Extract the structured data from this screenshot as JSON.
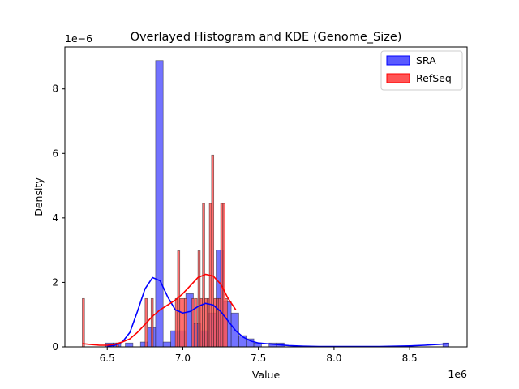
{
  "chart_data": {
    "type": "histogram",
    "title": "Overlayed Histogram and KDE (Genome_Size)",
    "xlabel": "Value",
    "ylabel": "Density",
    "x_scale_label": "1e6",
    "y_scale_label": "1e−6",
    "xlim": [
      6.22,
      8.88
    ],
    "ylim": [
      0,
      9.3
    ],
    "x_unit_note": "x in units of 1e6, y in units of 1e-6",
    "xticks": [
      {
        "value": 6.5,
        "label": "6.5"
      },
      {
        "value": 7.0,
        "label": "7.0"
      },
      {
        "value": 7.5,
        "label": "7.5"
      },
      {
        "value": 8.0,
        "label": "8.0"
      },
      {
        "value": 8.5,
        "label": "8.5"
      }
    ],
    "yticks": [
      {
        "value": 0,
        "label": "0"
      },
      {
        "value": 2,
        "label": "2"
      },
      {
        "value": 4,
        "label": "4"
      },
      {
        "value": 6,
        "label": "6"
      },
      {
        "value": 8,
        "label": "8"
      }
    ],
    "legend": {
      "position": "top-right"
    },
    "series": [
      {
        "name": "SRA",
        "color": "#0000ff",
        "fill": "#5a5aff",
        "bars": [
          {
            "x0": 6.49,
            "x1": 6.54,
            "y": 0.12
          },
          {
            "x0": 6.54,
            "x1": 6.59,
            "y": 0.12
          },
          {
            "x0": 6.62,
            "x1": 6.67,
            "y": 0.12
          },
          {
            "x0": 6.72,
            "x1": 6.77,
            "y": 0.15
          },
          {
            "x0": 6.77,
            "x1": 6.82,
            "y": 0.6
          },
          {
            "x0": 6.82,
            "x1": 6.87,
            "y": 8.88
          },
          {
            "x0": 6.87,
            "x1": 6.92,
            "y": 0.15
          },
          {
            "x0": 6.92,
            "x1": 6.97,
            "y": 0.5
          },
          {
            "x0": 6.97,
            "x1": 7.02,
            "y": 0.5
          },
          {
            "x0": 7.02,
            "x1": 7.07,
            "y": 1.65
          },
          {
            "x0": 7.07,
            "x1": 7.12,
            "y": 0.72
          },
          {
            "x0": 7.12,
            "x1": 7.17,
            "y": 0.5
          },
          {
            "x0": 7.17,
            "x1": 7.22,
            "y": 1.05
          },
          {
            "x0": 7.22,
            "x1": 7.27,
            "y": 3.0
          },
          {
            "x0": 7.27,
            "x1": 7.32,
            "y": 1.4
          },
          {
            "x0": 7.32,
            "x1": 7.37,
            "y": 1.05
          },
          {
            "x0": 7.37,
            "x1": 7.42,
            "y": 0.35
          },
          {
            "x0": 7.42,
            "x1": 7.47,
            "y": 0.25
          },
          {
            "x0": 7.47,
            "x1": 7.52,
            "y": 0.12
          },
          {
            "x0": 7.57,
            "x1": 7.62,
            "y": 0.12
          },
          {
            "x0": 7.62,
            "x1": 7.67,
            "y": 0.12
          },
          {
            "x0": 8.72,
            "x1": 8.76,
            "y": 0.12
          }
        ],
        "kde": {
          "x": [
            6.5,
            6.55,
            6.6,
            6.65,
            6.7,
            6.75,
            6.8,
            6.85,
            6.9,
            6.95,
            7.0,
            7.05,
            7.1,
            7.15,
            7.2,
            7.25,
            7.3,
            7.35,
            7.4,
            7.45,
            7.5,
            7.55,
            7.6,
            7.65,
            7.7,
            7.8,
            7.9,
            8.0,
            8.1,
            8.2,
            8.3,
            8.4,
            8.5,
            8.6,
            8.7,
            8.76
          ],
          "y": [
            0.02,
            0.05,
            0.15,
            0.45,
            1.1,
            1.8,
            2.15,
            2.05,
            1.55,
            1.15,
            1.05,
            1.1,
            1.25,
            1.35,
            1.3,
            1.1,
            0.8,
            0.5,
            0.3,
            0.18,
            0.12,
            0.1,
            0.08,
            0.06,
            0.04,
            0.02,
            0.01,
            0.01,
            0.01,
            0.01,
            0.01,
            0.02,
            0.03,
            0.05,
            0.08,
            0.1
          ]
        }
      },
      {
        "name": "RefSeq",
        "color": "#ff0000",
        "fill": "#ff5555",
        "bars": [
          {
            "x0": 6.335,
            "x1": 6.35,
            "y": 1.5
          },
          {
            "x0": 6.56,
            "x1": 6.575,
            "y": 0.12
          },
          {
            "x0": 6.75,
            "x1": 6.765,
            "y": 1.5
          },
          {
            "x0": 6.79,
            "x1": 6.805,
            "y": 1.5
          },
          {
            "x0": 6.95,
            "x1": 6.965,
            "y": 1.5
          },
          {
            "x0": 6.965,
            "x1": 6.98,
            "y": 2.98
          },
          {
            "x0": 6.98,
            "x1": 6.995,
            "y": 1.5
          },
          {
            "x0": 6.995,
            "x1": 7.01,
            "y": 1.5
          },
          {
            "x0": 7.01,
            "x1": 7.025,
            "y": 1.5
          },
          {
            "x0": 7.06,
            "x1": 7.075,
            "y": 1.5
          },
          {
            "x0": 7.08,
            "x1": 7.095,
            "y": 1.5
          },
          {
            "x0": 7.1,
            "x1": 7.115,
            "y": 2.98
          },
          {
            "x0": 7.115,
            "x1": 7.13,
            "y": 1.5
          },
          {
            "x0": 7.13,
            "x1": 7.145,
            "y": 4.45
          },
          {
            "x0": 7.145,
            "x1": 7.16,
            "y": 1.5
          },
          {
            "x0": 7.16,
            "x1": 7.175,
            "y": 1.5
          },
          {
            "x0": 7.175,
            "x1": 7.19,
            "y": 4.45
          },
          {
            "x0": 7.19,
            "x1": 7.205,
            "y": 5.95
          },
          {
            "x0": 7.205,
            "x1": 7.22,
            "y": 1.5
          },
          {
            "x0": 7.22,
            "x1": 7.235,
            "y": 1.5
          },
          {
            "x0": 7.235,
            "x1": 7.25,
            "y": 1.5
          },
          {
            "x0": 7.25,
            "x1": 7.265,
            "y": 4.45
          },
          {
            "x0": 7.265,
            "x1": 7.28,
            "y": 4.45
          },
          {
            "x0": 7.28,
            "x1": 7.295,
            "y": 1.5
          }
        ],
        "kde": {
          "x": [
            6.335,
            6.4,
            6.45,
            6.5,
            6.55,
            6.6,
            6.65,
            6.7,
            6.75,
            6.8,
            6.85,
            6.9,
            6.95,
            7.0,
            7.05,
            7.1,
            7.15,
            7.2,
            7.25,
            7.3,
            7.35
          ],
          "y": [
            0.1,
            0.07,
            0.05,
            0.05,
            0.08,
            0.15,
            0.25,
            0.45,
            0.7,
            0.95,
            1.15,
            1.3,
            1.45,
            1.65,
            1.9,
            2.15,
            2.25,
            2.2,
            1.95,
            1.5,
            1.15
          ]
        }
      }
    ]
  }
}
